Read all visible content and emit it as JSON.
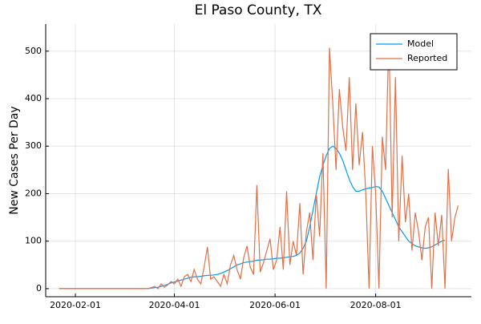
{
  "chart_data": {
    "type": "line",
    "title": "El Paso County, TX",
    "y_label": "New Cases Per Day",
    "x": [
      "2020-01-22",
      "2020-02-15",
      "2020-03-10",
      "2020-03-14",
      "2020-03-16",
      "2020-03-18",
      "2020-03-20",
      "2020-03-22",
      "2020-03-24",
      "2020-03-26",
      "2020-03-28",
      "2020-03-30",
      "2020-04-01",
      "2020-04-03",
      "2020-04-05",
      "2020-04-07",
      "2020-04-09",
      "2020-04-11",
      "2020-04-13",
      "2020-04-15",
      "2020-04-17",
      "2020-04-19",
      "2020-04-21",
      "2020-04-23",
      "2020-04-25",
      "2020-04-27",
      "2020-04-29",
      "2020-05-01",
      "2020-05-03",
      "2020-05-05",
      "2020-05-07",
      "2020-05-09",
      "2020-05-11",
      "2020-05-13",
      "2020-05-15",
      "2020-05-17",
      "2020-05-19",
      "2020-05-21",
      "2020-05-23",
      "2020-05-25",
      "2020-05-27",
      "2020-05-29",
      "2020-05-31",
      "2020-06-02",
      "2020-06-04",
      "2020-06-06",
      "2020-06-08",
      "2020-06-10",
      "2020-06-12",
      "2020-06-14",
      "2020-06-16",
      "2020-06-18",
      "2020-06-20",
      "2020-06-22",
      "2020-06-24",
      "2020-06-26",
      "2020-06-28",
      "2020-06-30",
      "2020-07-02",
      "2020-07-04",
      "2020-07-06",
      "2020-07-08",
      "2020-07-10",
      "2020-07-12",
      "2020-07-14",
      "2020-07-16",
      "2020-07-18",
      "2020-07-20",
      "2020-07-22",
      "2020-07-24",
      "2020-07-26",
      "2020-07-28",
      "2020-07-30",
      "2020-08-01",
      "2020-08-03",
      "2020-08-05",
      "2020-08-07",
      "2020-08-09",
      "2020-08-11",
      "2020-08-13",
      "2020-08-15",
      "2020-08-17",
      "2020-08-19",
      "2020-08-21",
      "2020-08-23",
      "2020-08-25",
      "2020-08-27",
      "2020-08-29",
      "2020-08-31",
      "2020-09-02",
      "2020-09-04",
      "2020-09-06",
      "2020-09-08",
      "2020-09-10",
      "2020-09-12",
      "2020-09-14",
      "2020-09-16",
      "2020-09-18",
      "2020-09-20"
    ],
    "series": [
      {
        "name": "Model",
        "color": "#009af9",
        "values": [
          0,
          0,
          0,
          0,
          0,
          1,
          2,
          3,
          5,
          7,
          9,
          12,
          14,
          16,
          18,
          20,
          22,
          24,
          25,
          25,
          26,
          27,
          28,
          28,
          29,
          30,
          32,
          35,
          38,
          42,
          46,
          50,
          52,
          55,
          56,
          57,
          58,
          60,
          60,
          61,
          62,
          62,
          63,
          64,
          64,
          65,
          66,
          67,
          68,
          70,
          75,
          85,
          100,
          130,
          165,
          200,
          235,
          260,
          280,
          295,
          300,
          295,
          285,
          270,
          250,
          230,
          215,
          205,
          205,
          208,
          210,
          212,
          213,
          215,
          214,
          205,
          190,
          175,
          160,
          145,
          130,
          120,
          110,
          100,
          95,
          90,
          88,
          86,
          85,
          86,
          88,
          92,
          96,
          100,
          102,
          null,
          null,
          null,
          null
        ]
      },
      {
        "name": "Reported",
        "color": "#e26f46",
        "values": [
          0,
          0,
          0,
          0,
          0,
          2,
          5,
          0,
          10,
          3,
          8,
          15,
          10,
          20,
          5,
          25,
          30,
          15,
          40,
          20,
          10,
          45,
          88,
          20,
          25,
          15,
          5,
          30,
          10,
          50,
          70,
          40,
          20,
          65,
          90,
          45,
          30,
          218,
          35,
          55,
          80,
          105,
          40,
          60,
          130,
          40,
          205,
          50,
          100,
          70,
          180,
          30,
          120,
          160,
          60,
          200,
          110,
          285,
          0,
          507,
          390,
          250,
          420,
          340,
          290,
          445,
          250,
          390,
          260,
          330,
          200,
          0,
          300,
          200,
          0,
          320,
          250,
          537,
          150,
          445,
          100,
          280,
          140,
          200,
          80,
          160,
          120,
          60,
          130,
          150,
          0,
          160,
          90,
          155,
          0,
          252,
          100,
          150,
          175
        ]
      }
    ],
    "xlim": [
      "2020-01-14",
      "2020-09-28"
    ],
    "xticks": [
      "2020-02-01",
      "2020-04-01",
      "2020-06-01",
      "2020-08-01"
    ],
    "ylim": [
      -17,
      557
    ],
    "yticks": [
      0,
      100,
      200,
      300,
      400,
      500
    ],
    "grid": true,
    "legend": "top-right"
  }
}
